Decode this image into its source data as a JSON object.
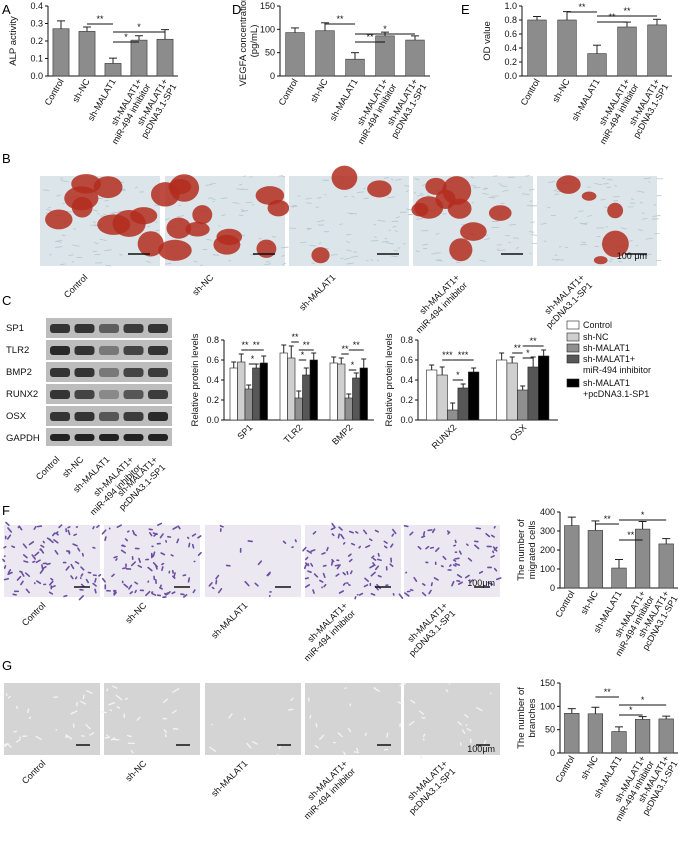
{
  "panel_letters": [
    "A",
    "B",
    "C",
    "D",
    "E",
    "F",
    "G"
  ],
  "groups": [
    "Control",
    "sh-NC",
    "sh-MALAT1",
    "sh-MALAT1+ miR-494 inhibitor",
    "sh-MALAT1+ pcDNA3.1-SP1"
  ],
  "micrograph_captions": {
    "B": [
      "Control",
      "sh-NC",
      "sh-MALAT1",
      "sh-MALAT1+ miR-494 inhibitor",
      "sh-MALAT1+ pcDNA3.1-SP1"
    ],
    "F": [
      "Control",
      "sh-NC",
      "sh-MALAT1",
      "sh-MALAT1+ miR-494 inhibitor",
      "sh-MALAT1+ pcDNA3.1-SP1"
    ],
    "G": [
      "Control",
      "sh-NC",
      "sh-MALAT1",
      "sh-MALAT1+ miR-494 inhibitor",
      "sh-MALAT1+ pcDNA3.1-SP1"
    ]
  },
  "scale_bars": {
    "B": "100 μm",
    "F": "100μm",
    "G": "100μm"
  },
  "blot": {
    "bands": [
      "SP1",
      "TLR2",
      "BMP2",
      "RUNX2",
      "OSX",
      "GAPDH"
    ],
    "lanes": [
      "Control",
      "sh-NC",
      "sh-MALAT1",
      "sh-MALAT1+ miR-494 inhibitor",
      "sh-MALAT1+ pcDNA3.1-SP1"
    ]
  },
  "legend_C": [
    "Control",
    "sh-NC",
    "sh-MALAT1",
    "sh-MALAT1+ miR-494 inhibitor",
    "sh-MALAT1 +pcDNA3.1-SP1"
  ],
  "colors": {
    "bar_gray": "#8c8c8c",
    "c_control": "#ffffff",
    "c_shnc": "#cfcfcf",
    "c_shmalat1": "#8f8f8f",
    "c_inhibitor": "#575757",
    "c_sp1": "#000000",
    "stain_red": "#b32d1f",
    "crystal_violet": "#6b4fa0",
    "phase_gray": "#cfcfcf"
  },
  "chart_data": [
    {
      "id": "A",
      "type": "bar",
      "ylabel": "ALP activity",
      "ylim": [
        0,
        0.4
      ],
      "yticks": [
        "0.0",
        "0.1",
        "0.2",
        "0.3",
        "0.4"
      ],
      "categories": [
        "Control",
        "sh-NC",
        "sh-MALAT1",
        "sh-MALAT1+ miR-494 inhibitor",
        "sh-MALAT1+ pcDNA3.1-SP1"
      ],
      "values": [
        0.27,
        0.255,
        0.072,
        0.205,
        0.21
      ],
      "errors": [
        0.045,
        0.025,
        0.03,
        0.025,
        0.055
      ],
      "significance": [
        [
          "1",
          "2",
          "**"
        ],
        [
          "2",
          "3",
          "*"
        ],
        [
          "2",
          "4",
          "*"
        ]
      ]
    },
    {
      "id": "D",
      "type": "bar",
      "ylabel": "VEGFA concentration (pg/mL)",
      "ylim": [
        0,
        150
      ],
      "yticks": [
        "0",
        "50",
        "100",
        "150"
      ],
      "categories": [
        "Control",
        "sh-NC",
        "sh-MALAT1",
        "sh-MALAT1+ miR-494 inhibitor",
        "sh-MALAT1+ pcDNA3.1-SP1"
      ],
      "values": [
        93,
        97,
        36,
        86,
        77
      ],
      "errors": [
        10,
        17,
        14,
        8,
        9
      ],
      "significance": [
        [
          "1",
          "2",
          "**"
        ],
        [
          "2",
          "3",
          "**"
        ],
        [
          "2",
          "4",
          "*"
        ]
      ]
    },
    {
      "id": "E",
      "type": "bar",
      "ylabel": "OD value",
      "ylim": [
        0,
        1.0
      ],
      "yticks": [
        "0.0",
        "0.2",
        "0.4",
        "0.6",
        "0.8",
        "1.0"
      ],
      "categories": [
        "Control",
        "sh-NC",
        "sh-MALAT1",
        "sh-MALAT1+ miR-494 inhibitor",
        "sh-MALAT1+ pcDNA3.1-SP1"
      ],
      "values": [
        0.8,
        0.8,
        0.32,
        0.7,
        0.73
      ],
      "errors": [
        0.05,
        0.12,
        0.12,
        0.07,
        0.08
      ],
      "significance": [
        [
          "0",
          "2",
          "**"
        ],
        [
          "2",
          "3",
          "**"
        ],
        [
          "2",
          "4",
          "**"
        ]
      ]
    },
    {
      "id": "C1",
      "type": "bar",
      "ylabel": "Relative protein levels",
      "ylim": [
        0,
        0.8
      ],
      "yticks": [
        "0.0",
        "0.2",
        "0.4",
        "0.6",
        "0.8"
      ],
      "categories": [
        "SP1",
        "TLR2",
        "BMP2"
      ],
      "series": [
        {
          "name": "Control",
          "values": [
            0.52,
            0.67,
            0.57
          ],
          "errors": [
            0.06,
            0.08,
            0.06
          ]
        },
        {
          "name": "sh-NC",
          "values": [
            0.58,
            0.62,
            0.56
          ],
          "errors": [
            0.08,
            0.12,
            0.06
          ]
        },
        {
          "name": "sh-MALAT1",
          "values": [
            0.31,
            0.22,
            0.22
          ],
          "errors": [
            0.04,
            0.07,
            0.04
          ]
        },
        {
          "name": "sh-MALAT1+ miR-494 inhibitor",
          "values": [
            0.52,
            0.45,
            0.42
          ],
          "errors": [
            0.04,
            0.07,
            0.05
          ]
        },
        {
          "name": "sh-MALAT1 +pcDNA3.1-SP1",
          "values": [
            0.57,
            0.6,
            0.52
          ],
          "errors": [
            0.07,
            0.07,
            0.09
          ]
        }
      ],
      "significance": [
        {
          "cat": 0,
          "from": 1,
          "to": 2,
          "text": "**",
          "y": 0.7
        },
        {
          "cat": 0,
          "from": 2,
          "to": 3,
          "text": "*",
          "y": 0.56
        },
        {
          "cat": 0,
          "from": 2,
          "to": 4,
          "text": "**",
          "y": 0.7
        },
        {
          "cat": 1,
          "from": 1,
          "to": 2,
          "text": "**",
          "y": 0.78
        },
        {
          "cat": 1,
          "from": 2,
          "to": 3,
          "text": "*",
          "y": 0.6
        },
        {
          "cat": 1,
          "from": 2,
          "to": 4,
          "text": "**",
          "y": 0.7
        },
        {
          "cat": 2,
          "from": 1,
          "to": 2,
          "text": "**",
          "y": 0.66
        },
        {
          "cat": 2,
          "from": 2,
          "to": 3,
          "text": "*",
          "y": 0.5
        },
        {
          "cat": 2,
          "from": 2,
          "to": 4,
          "text": "**",
          "y": 0.7
        }
      ]
    },
    {
      "id": "C2",
      "type": "bar",
      "ylabel": "Relative protein levels",
      "ylim": [
        0,
        0.8
      ],
      "yticks": [
        "0.0",
        "0.2",
        "0.4",
        "0.6",
        "0.8"
      ],
      "categories": [
        "RUNX2",
        "OSX"
      ],
      "series": [
        {
          "name": "Control",
          "values": [
            0.5,
            0.6
          ],
          "errors": [
            0.05,
            0.07
          ]
        },
        {
          "name": "sh-NC",
          "values": [
            0.45,
            0.57
          ],
          "errors": [
            0.08,
            0.06
          ]
        },
        {
          "name": "sh-MALAT1",
          "values": [
            0.1,
            0.3
          ],
          "errors": [
            0.07,
            0.04
          ]
        },
        {
          "name": "sh-MALAT1+ miR-494 inhibitor",
          "values": [
            0.32,
            0.53
          ],
          "errors": [
            0.04,
            0.1
          ]
        },
        {
          "name": "sh-MALAT1 +pcDNA3.1-SP1",
          "values": [
            0.48,
            0.64
          ],
          "errors": [
            0.04,
            0.06
          ]
        }
      ],
      "significance": [
        {
          "cat": 0,
          "from": 1,
          "to": 2,
          "text": "***",
          "y": 0.6
        },
        {
          "cat": 0,
          "from": 2,
          "to": 3,
          "text": "*",
          "y": 0.4
        },
        {
          "cat": 0,
          "from": 2,
          "to": 4,
          "text": "***",
          "y": 0.6
        },
        {
          "cat": 1,
          "from": 1,
          "to": 2,
          "text": "**",
          "y": 0.67
        },
        {
          "cat": 1,
          "from": 2,
          "to": 3,
          "text": "*",
          "y": 0.62
        },
        {
          "cat": 1,
          "from": 2,
          "to": 4,
          "text": "**",
          "y": 0.74
        }
      ]
    },
    {
      "id": "F",
      "type": "bar",
      "ylabel": "The number of migrated cells",
      "ylim": [
        0,
        400
      ],
      "yticks": [
        "0",
        "100",
        "200",
        "300",
        "400"
      ],
      "categories": [
        "Control",
        "sh-NC",
        "sh-MALAT1",
        "sh-MALAT1+ miR-494 inhibitor",
        "sh-MALAT1+ pcDNA3.1-SP1"
      ],
      "values": [
        328,
        303,
        105,
        310,
        232
      ],
      "errors": [
        45,
        50,
        45,
        40,
        28
      ],
      "significance": [
        [
          "1",
          "2",
          "**"
        ],
        [
          "2",
          "3",
          "**"
        ],
        [
          "2",
          "4",
          "*"
        ]
      ]
    },
    {
      "id": "G",
      "type": "bar",
      "ylabel": "The number of branches",
      "ylim": [
        0,
        150
      ],
      "yticks": [
        "0",
        "50",
        "100",
        "150"
      ],
      "categories": [
        "Control",
        "sh-NC",
        "sh-MALAT1",
        "sh-MALAT1+ miR-494 inhibitor",
        "sh-MALAT1+ pcDNA3.1-SP1"
      ],
      "values": [
        85,
        84,
        46,
        72,
        73
      ],
      "errors": [
        10,
        14,
        10,
        6,
        6
      ],
      "significance": [
        [
          "1",
          "2",
          "**"
        ],
        [
          "2",
          "3",
          "*"
        ],
        [
          "2",
          "4",
          "*"
        ]
      ]
    }
  ]
}
